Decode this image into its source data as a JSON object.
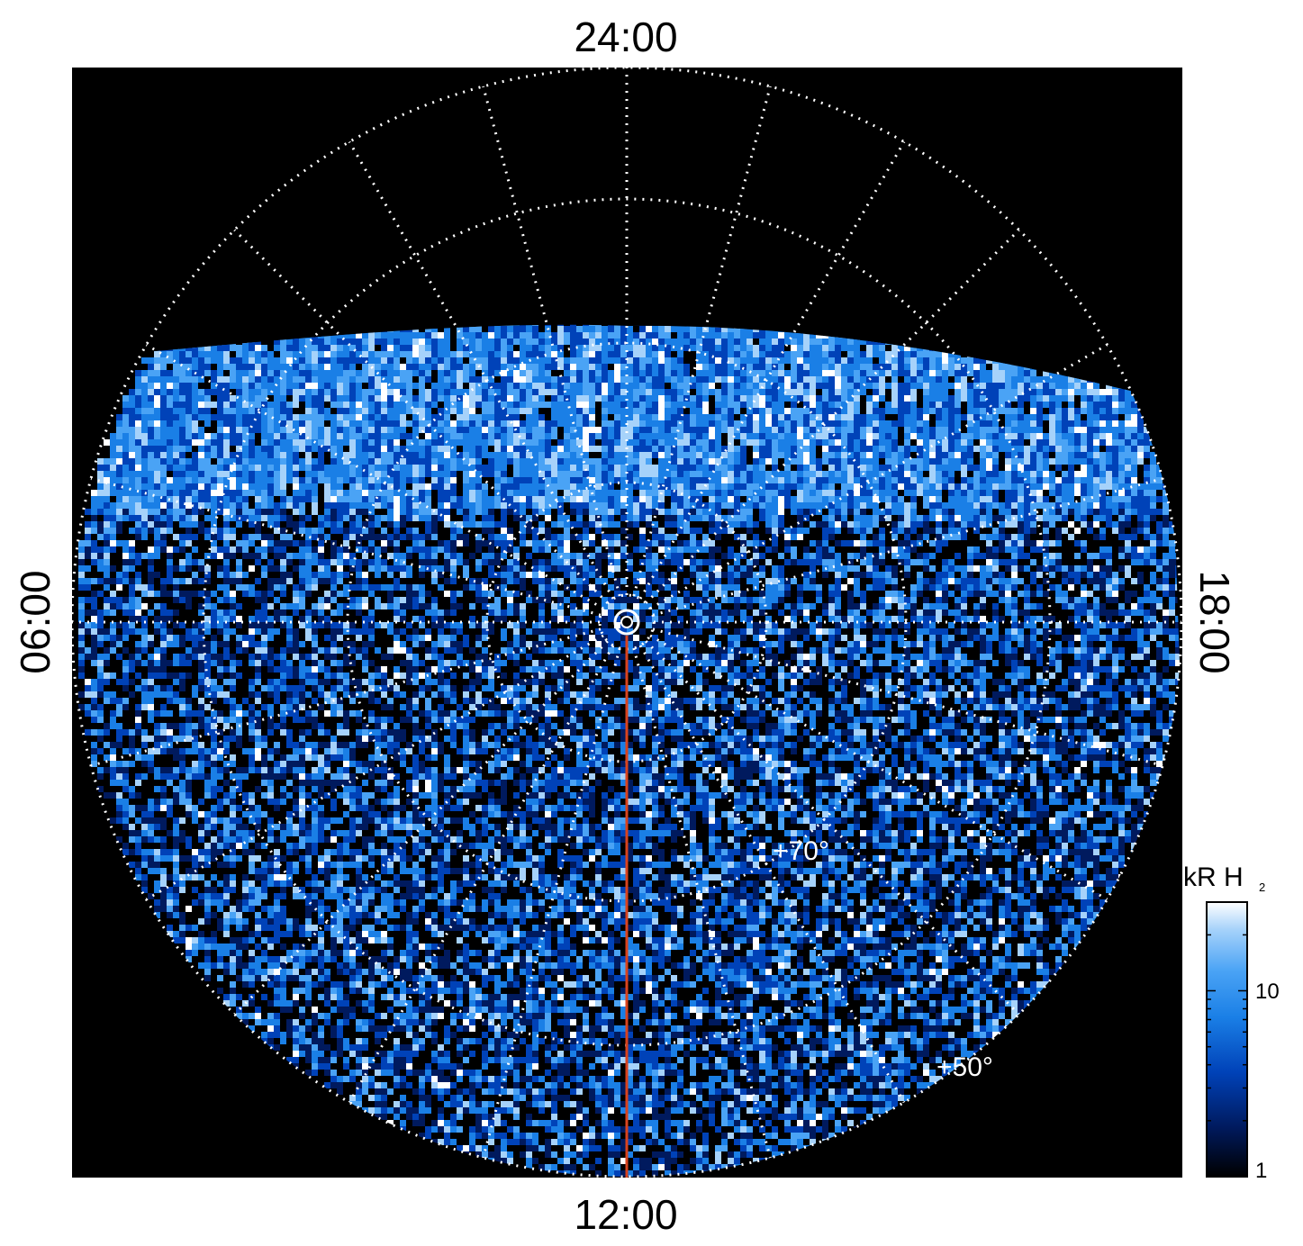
{
  "local_time_labels": {
    "top": "24:00",
    "bottom": "12:00",
    "left": "06:00",
    "right": "18:00"
  },
  "latitude_labels": {
    "inner": "+70°",
    "outer": "+50°"
  },
  "colorbar": {
    "title_main": "kR H",
    "title_sub": "2",
    "ticks": [
      "10",
      "1"
    ],
    "scale": "log",
    "range": [
      1,
      30
    ],
    "colors": [
      "#000000",
      "#001a5e",
      "#0042b8",
      "#1a7fe6",
      "#4aa3f5",
      "#a6d2fa",
      "#ffffff"
    ]
  },
  "colors": {
    "background": "#000000",
    "grid": "#ffffff",
    "meridian_line": "#d8431e"
  }
}
